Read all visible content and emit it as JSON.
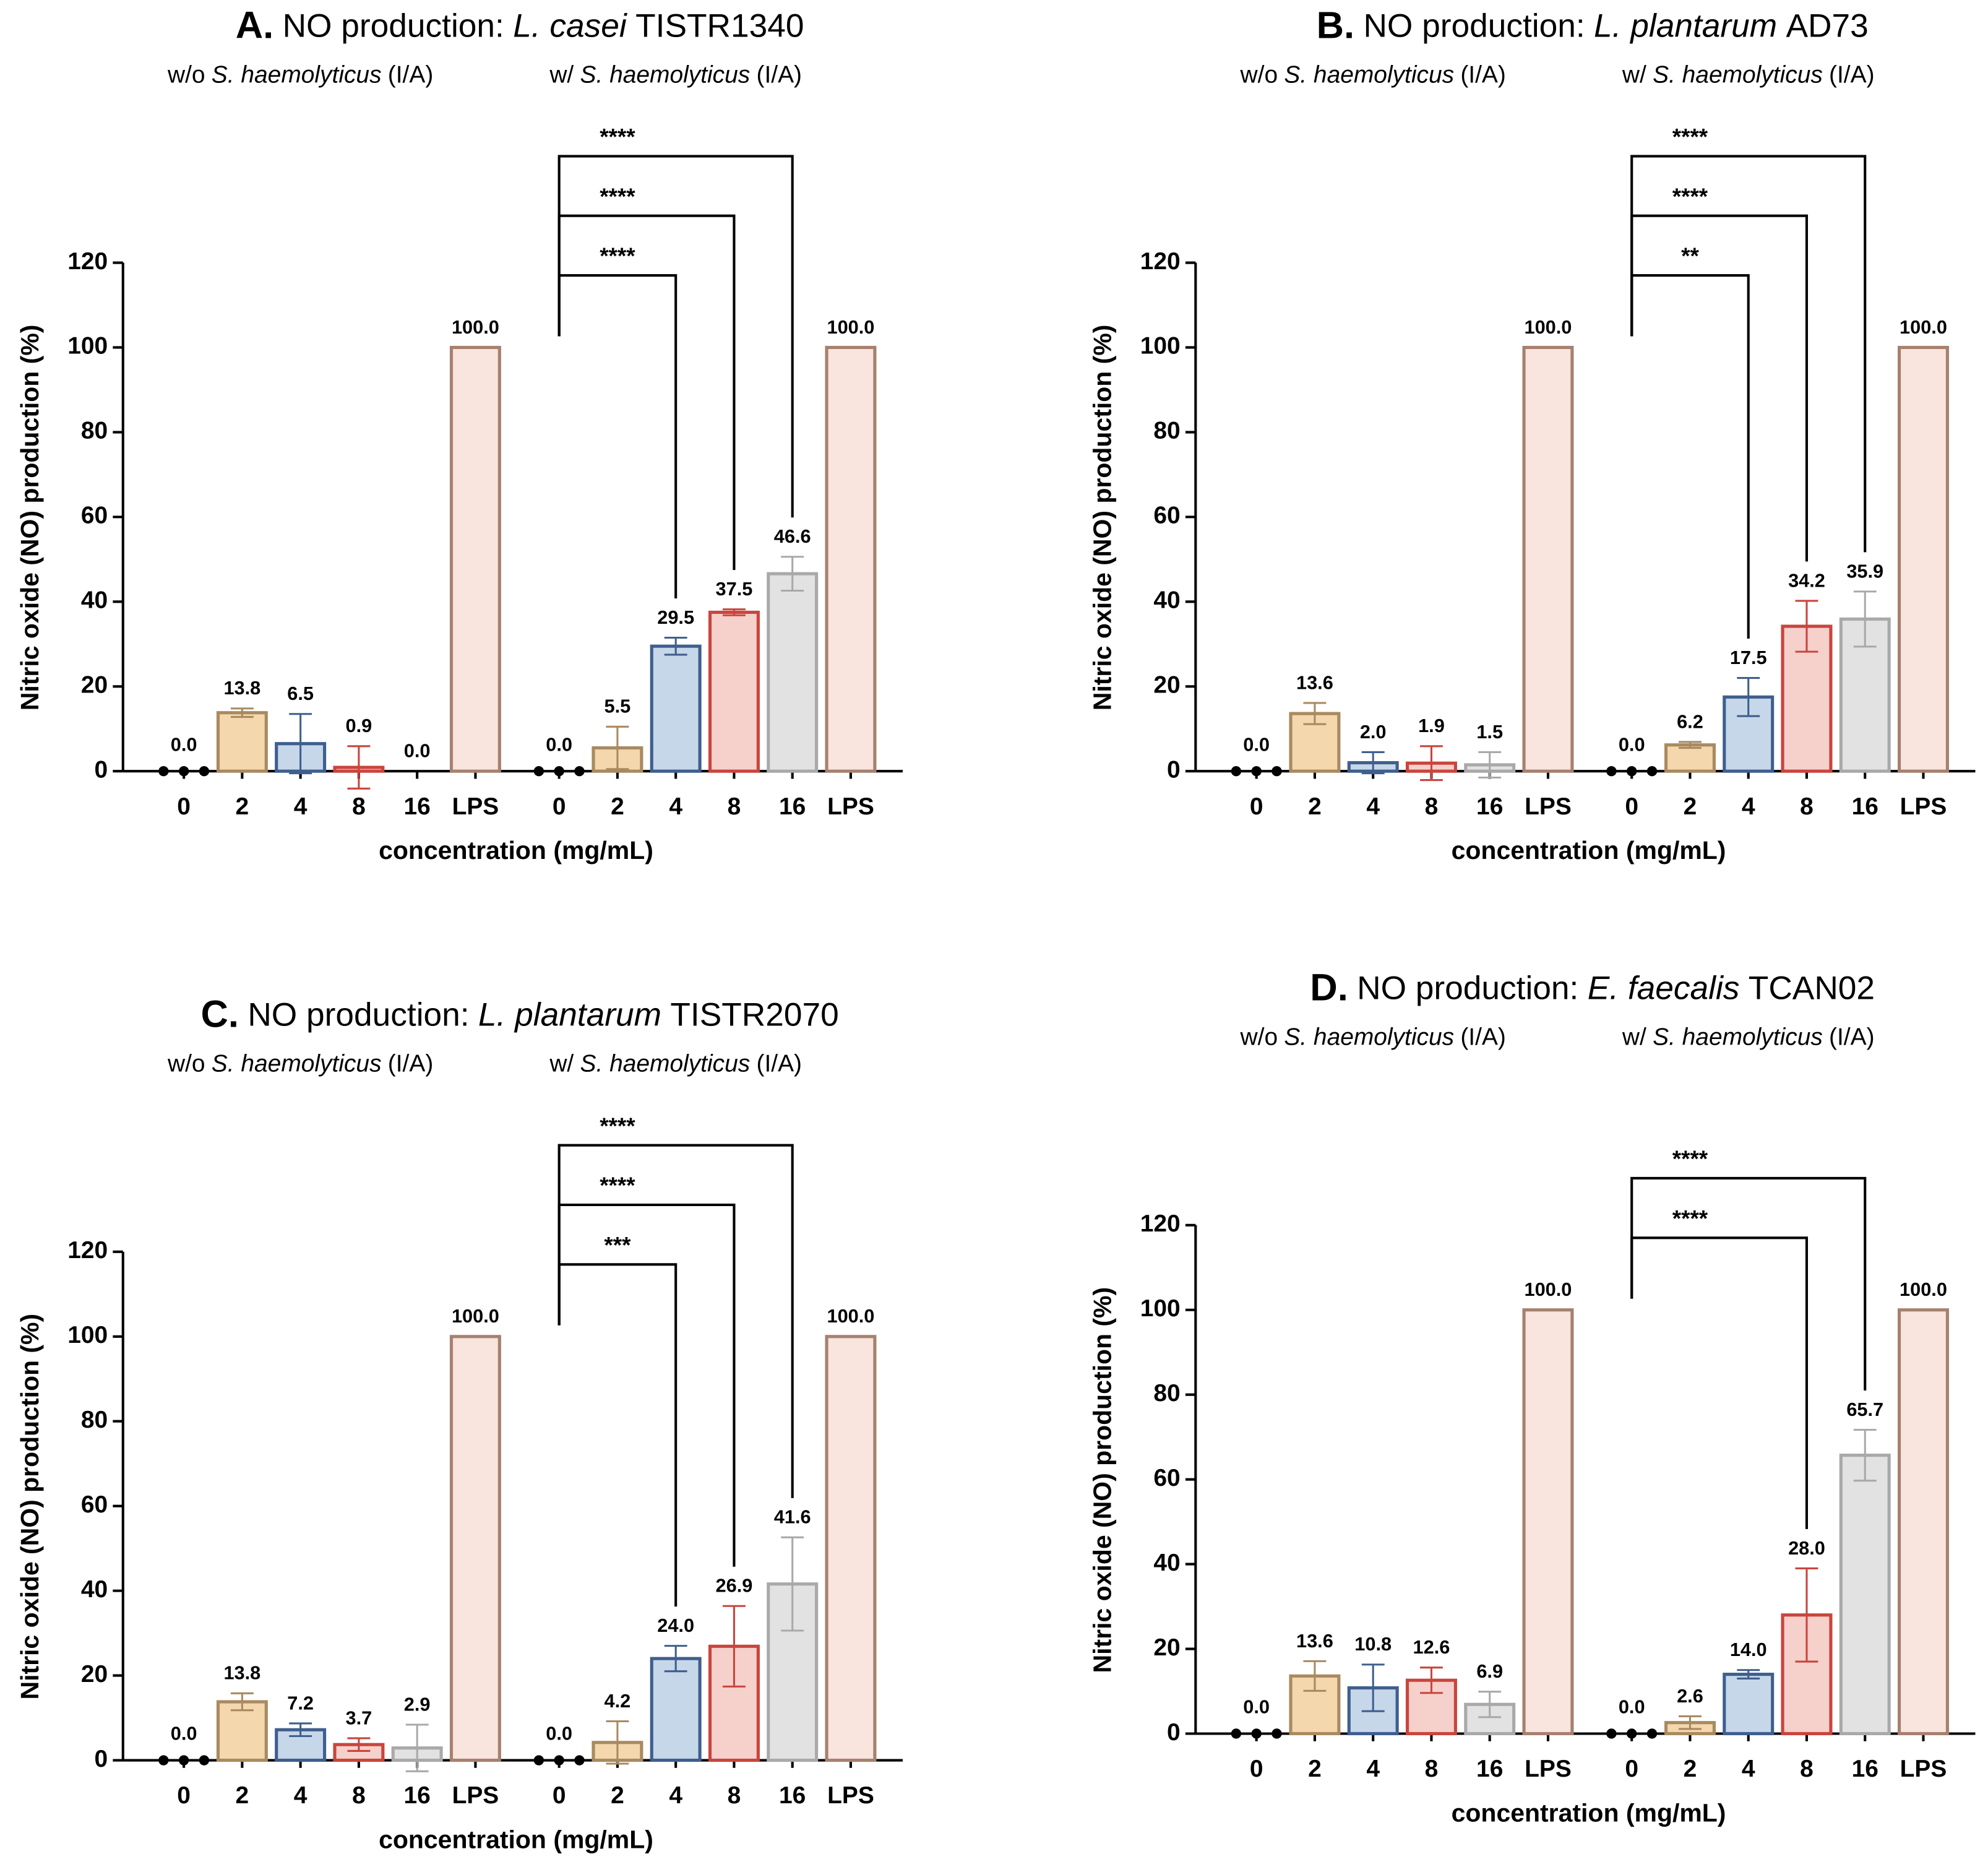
{
  "chart_data": [
    {
      "type": "bar",
      "title_letter": "A.",
      "title_text": "NO production:",
      "title_species": "L. casei",
      "title_strain": "TISTR1340",
      "ylabel": "Nitric oxide (NO) production (%)",
      "xlabel": "concentration (mg/mL)",
      "ylim": [
        0,
        120
      ],
      "yticks": [
        0,
        20,
        40,
        60,
        80,
        100,
        120
      ],
      "categories": [
        "0",
        "2",
        "4",
        "8",
        "16",
        "LPS"
      ],
      "colors": [
        "#000000",
        "#f5d7ae",
        "#c6d7ea",
        "#f6d0cb",
        "#e2e2e2",
        "#f9e4de"
      ],
      "edge_colors": [
        "#000000",
        "#a98a60",
        "#3f5f8d",
        "#c9453d",
        "#a9a9a9",
        "#a6816f"
      ],
      "series": [
        {
          "prefix": "w/o",
          "species": "S. haemolyticus",
          "suffix": "(I/A)",
          "values": [
            0,
            13.8,
            6.5,
            0.9,
            0,
            100
          ],
          "value_labels": [
            "0.0",
            "13.8",
            "6.5",
            "0.9",
            "0.0",
            "100.0"
          ],
          "errors": [
            0,
            1,
            7,
            5,
            0,
            0
          ],
          "significance": [
            null,
            null,
            null,
            null,
            null,
            null
          ]
        },
        {
          "prefix": "w/",
          "species": "S. haemolyticus",
          "suffix": "(I/A)",
          "values": [
            0,
            5.5,
            29.5,
            37.5,
            46.6,
            100
          ],
          "value_labels": [
            "0.0",
            "5.5",
            "29.5",
            "37.5",
            "46.6",
            "100.0"
          ],
          "errors": [
            0,
            5,
            2,
            0.7,
            4,
            0
          ],
          "significance": [
            null,
            null,
            "****",
            "****",
            "****",
            null
          ]
        }
      ]
    },
    {
      "type": "bar",
      "title_letter": "B.",
      "title_text": "NO production:",
      "title_species": "L. plantarum",
      "title_strain": "AD73",
      "ylabel": "Nitric oxide (NO) production (%)",
      "xlabel": "concentration (mg/mL)",
      "ylim": [
        0,
        120
      ],
      "yticks": [
        0,
        20,
        40,
        60,
        80,
        100,
        120
      ],
      "categories": [
        "0",
        "2",
        "4",
        "8",
        "16",
        "LPS"
      ],
      "colors": [
        "#000000",
        "#f5d7ae",
        "#c6d7ea",
        "#f6d0cb",
        "#e2e2e2",
        "#f9e4de"
      ],
      "edge_colors": [
        "#000000",
        "#a98a60",
        "#3f5f8d",
        "#c9453d",
        "#a9a9a9",
        "#a6816f"
      ],
      "series": [
        {
          "prefix": "w/o",
          "species": "S. haemolyticus",
          "suffix": "(I/A)",
          "values": [
            0,
            13.6,
            2.0,
            1.9,
            1.5,
            100
          ],
          "value_labels": [
            "0.0",
            "13.6",
            "2.0",
            "1.9",
            "1.5",
            "100.0"
          ],
          "errors": [
            0,
            2.5,
            2.5,
            4,
            3,
            0
          ],
          "significance": [
            null,
            null,
            null,
            null,
            null,
            null
          ]
        },
        {
          "prefix": "w/",
          "species": "S. haemolyticus",
          "suffix": "(I/A)",
          "values": [
            0,
            6.2,
            17.5,
            34.2,
            35.9,
            100
          ],
          "value_labels": [
            "0.0",
            "6.2",
            "17.5",
            "34.2",
            "35.9",
            "100.0"
          ],
          "errors": [
            0,
            0.7,
            4.5,
            6,
            6.5,
            0
          ],
          "significance": [
            null,
            null,
            "**",
            "****",
            "****",
            null
          ]
        }
      ]
    },
    {
      "type": "bar",
      "title_letter": "C.",
      "title_text": "NO production:",
      "title_species": "L. plantarum",
      "title_strain": "TISTR2070",
      "ylabel": "Nitric oxide (NO) production (%)",
      "xlabel": "concentration (mg/mL)",
      "ylim": [
        0,
        120
      ],
      "yticks": [
        0,
        20,
        40,
        60,
        80,
        100,
        120
      ],
      "categories": [
        "0",
        "2",
        "4",
        "8",
        "16",
        "LPS"
      ],
      "colors": [
        "#000000",
        "#f5d7ae",
        "#c6d7ea",
        "#f6d0cb",
        "#e2e2e2",
        "#f9e4de"
      ],
      "edge_colors": [
        "#000000",
        "#a98a60",
        "#3f5f8d",
        "#c9453d",
        "#a9a9a9",
        "#a6816f"
      ],
      "series": [
        {
          "prefix": "w/o",
          "species": "S. haemolyticus",
          "suffix": "(I/A)",
          "values": [
            0,
            13.8,
            7.2,
            3.7,
            2.9,
            100
          ],
          "value_labels": [
            "0.0",
            "13.8",
            "7.2",
            "3.7",
            "2.9",
            "100.0"
          ],
          "errors": [
            0,
            2,
            1.5,
            1.5,
            5.5,
            0
          ],
          "significance": [
            null,
            null,
            null,
            null,
            null,
            null
          ]
        },
        {
          "prefix": "w/",
          "species": "S. haemolyticus",
          "suffix": "(I/A)",
          "values": [
            0,
            4.2,
            24.0,
            26.9,
            41.6,
            100
          ],
          "value_labels": [
            "0.0",
            "4.2",
            "24.0",
            "26.9",
            "41.6",
            "100.0"
          ],
          "errors": [
            0,
            5,
            3,
            9.5,
            11,
            0
          ],
          "significance": [
            null,
            null,
            "***",
            "****",
            "****",
            null
          ]
        }
      ]
    },
    {
      "type": "bar",
      "title_letter": "D.",
      "title_text": "NO production:",
      "title_species": "E. faecalis",
      "title_strain": "TCAN02",
      "ylabel": "Nitric oxide (NO) production (%)",
      "xlabel": "concentration (mg/mL)",
      "ylim": [
        0,
        120
      ],
      "yticks": [
        0,
        20,
        40,
        60,
        80,
        100,
        120
      ],
      "categories": [
        "0",
        "2",
        "4",
        "8",
        "16",
        "LPS"
      ],
      "colors": [
        "#000000",
        "#f5d7ae",
        "#c6d7ea",
        "#f6d0cb",
        "#e2e2e2",
        "#f9e4de"
      ],
      "edge_colors": [
        "#000000",
        "#a98a60",
        "#3f5f8d",
        "#c9453d",
        "#a9a9a9",
        "#a6816f"
      ],
      "series": [
        {
          "prefix": "w/o",
          "species": "S. haemolyticus",
          "suffix": "(I/A)",
          "values": [
            0,
            13.6,
            10.8,
            12.6,
            6.9,
            100
          ],
          "value_labels": [
            "0.0",
            "13.6",
            "10.8",
            "12.6",
            "6.9",
            "100.0"
          ],
          "errors": [
            0,
            3.5,
            5.5,
            3,
            3,
            0
          ],
          "significance": [
            null,
            null,
            null,
            null,
            null,
            null
          ]
        },
        {
          "prefix": "w/",
          "species": "S. haemolyticus",
          "suffix": "(I/A)",
          "values": [
            0,
            2.6,
            14.0,
            28.0,
            65.7,
            100
          ],
          "value_labels": [
            "0.0",
            "2.6",
            "14.0",
            "28.0",
            "65.7",
            "100.0"
          ],
          "errors": [
            0,
            1.5,
            1,
            11,
            6,
            0
          ],
          "significance": [
            null,
            null,
            null,
            "****",
            "****",
            null
          ]
        }
      ]
    }
  ]
}
